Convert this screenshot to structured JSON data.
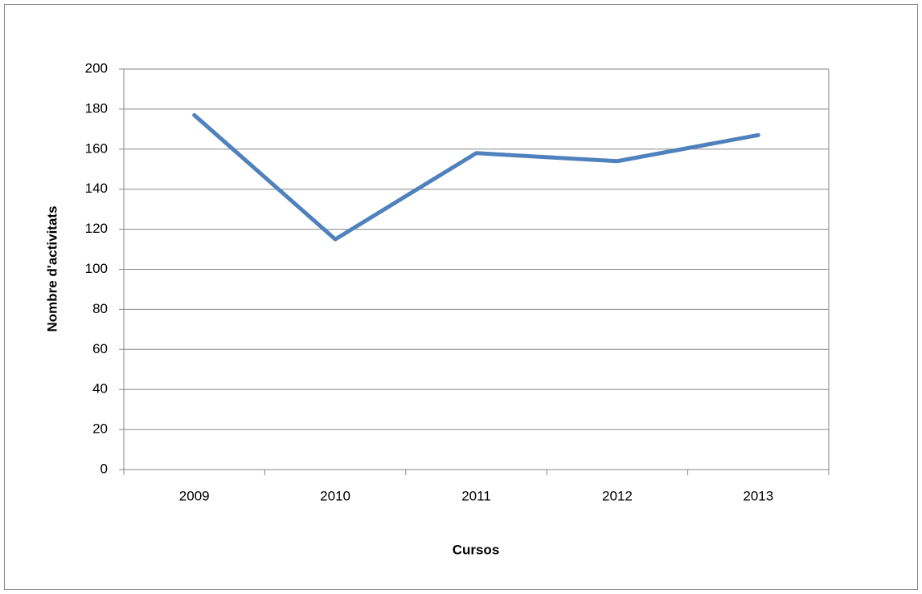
{
  "chart_data": {
    "type": "line",
    "categories": [
      "2009",
      "2010",
      "2011",
      "2012",
      "2013"
    ],
    "values": [
      177,
      115,
      158,
      154,
      167
    ],
    "color": "#4f81bd",
    "x_label": "Cursos",
    "y_label": "Nombre d'activitats",
    "ylim": [
      0,
      200
    ],
    "yticks": [
      0,
      20,
      40,
      60,
      80,
      100,
      120,
      140,
      160,
      180,
      200
    ],
    "grid": true
  }
}
